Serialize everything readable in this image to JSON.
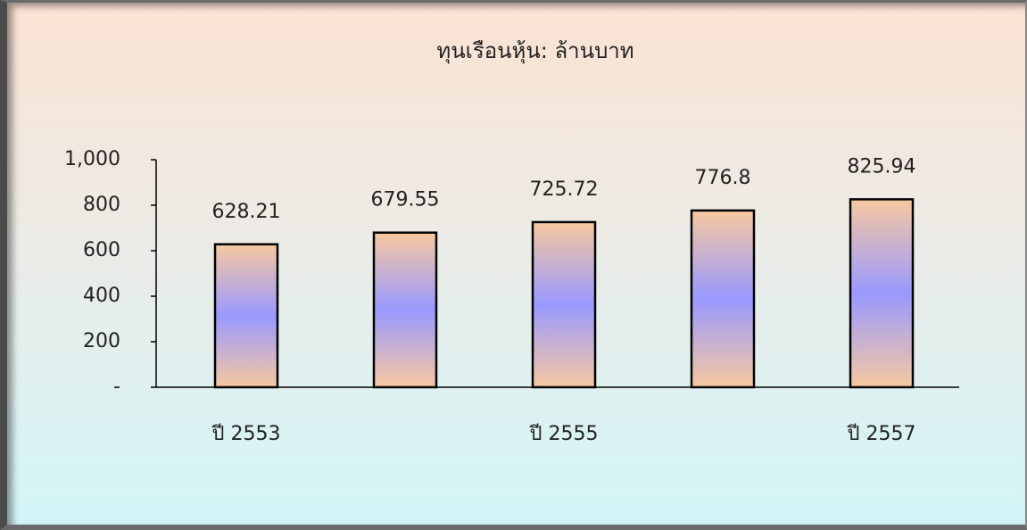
{
  "chart_data": {
    "type": "bar",
    "title": "ทุนเรือนหุ้น: ล้านบาท",
    "categories": [
      "ปี 2553",
      null,
      "ปี 2555",
      null,
      "ปี 2557"
    ],
    "values": [
      628.21,
      679.55,
      725.72,
      776.8,
      825.94
    ],
    "color": "#9999ff",
    "ylim": [
      0,
      1000
    ],
    "yticks": [
      {
        "value": 0,
        "label": "-"
      },
      200,
      400,
      600,
      800,
      {
        "value": 1000,
        "label": "1,000"
      }
    ]
  }
}
